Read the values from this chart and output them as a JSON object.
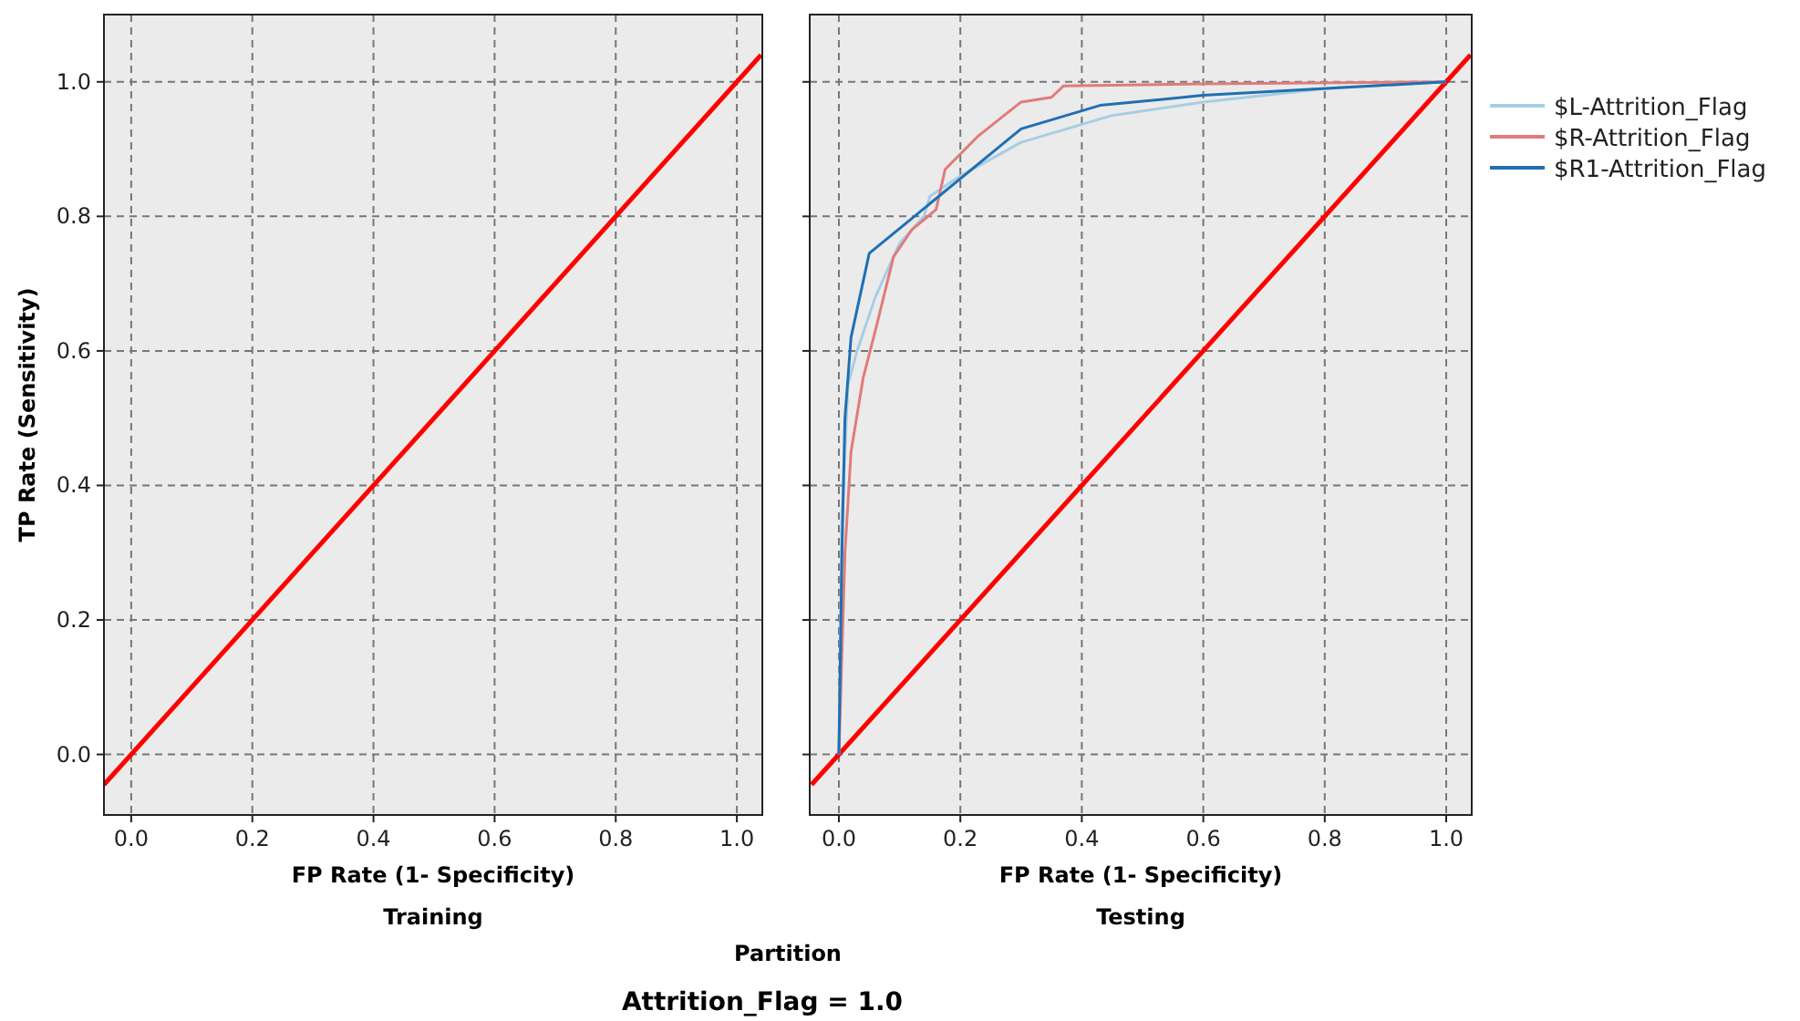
{
  "chart_data": [
    {
      "type": "line",
      "ylabel": "TP Rate (Sensitivity)",
      "xlabel": "FP Rate (1- Specificity)",
      "annotations": [
        "Training",
        "Partition",
        "Attrition_Flag = 1.0"
      ],
      "series": [
        {
          "color": "#ff0000",
          "x": [
            -0.045,
            1.04
          ],
          "values": [
            -0.045,
            1.04
          ]
        }
      ],
      "xlim": [
        -0.045,
        1.042
      ],
      "ylim": [
        -0.09,
        1.1
      ],
      "xticks": [
        {
          "value": 0,
          "label": "0.0"
        },
        {
          "value": 0.2,
          "label": "0.2"
        },
        {
          "value": 0.4,
          "label": "0.4"
        },
        {
          "value": 0.6,
          "label": "0.6"
        },
        {
          "value": 0.8,
          "label": "0.8"
        },
        {
          "value": 1,
          "label": "1.0"
        }
      ],
      "yticks": [
        {
          "value": 0,
          "label": "0.0"
        },
        {
          "value": 0.2,
          "label": "0.2"
        },
        {
          "value": 0.4,
          "label": "0.4"
        },
        {
          "value": 0.6,
          "label": "0.6"
        },
        {
          "value": 0.8,
          "label": "0.8"
        },
        {
          "value": 1,
          "label": "1.0"
        }
      ],
      "grid": true,
      "legend": false
    },
    {
      "type": "line",
      "xlabel": "FP Rate (1- Specificity)",
      "annotations": [
        "Testing"
      ],
      "tick_labels": "x",
      "series": [
        {
          "color": "#ff0000",
          "x": [
            -0.045,
            1.04
          ],
          "values": [
            -0.045,
            1.04
          ]
        },
        {
          "name": "$L-Attrition_Flag",
          "color": "#a6cee3",
          "x": [
            0,
            0.005,
            0.015,
            0.03,
            0.06,
            0.1,
            0.14,
            0.15,
            0.2,
            0.3,
            0.45,
            0.6,
            0.8,
            1
          ],
          "values": [
            0,
            0.35,
            0.55,
            0.6,
            0.68,
            0.76,
            0.8,
            0.83,
            0.86,
            0.91,
            0.95,
            0.97,
            0.99,
            1
          ]
        },
        {
          "name": "$R-Attrition_Flag",
          "color": "#e07b7b",
          "x": [
            0,
            0.01,
            0.02,
            0.04,
            0.06,
            0.09,
            0.12,
            0.16,
            0.175,
            0.23,
            0.3,
            0.35,
            0.37,
            0.6,
            1
          ],
          "values": [
            0,
            0.3,
            0.45,
            0.56,
            0.63,
            0.74,
            0.78,
            0.81,
            0.87,
            0.92,
            0.97,
            0.977,
            0.994,
            0.997,
            1
          ]
        },
        {
          "name": "$R1-Attrition_Flag",
          "color": "#1f6fb4",
          "x": [
            0,
            0.005,
            0.01,
            0.02,
            0.05,
            0.3,
            0.43,
            0.6,
            1
          ],
          "values": [
            0,
            0.3,
            0.5,
            0.62,
            0.745,
            0.93,
            0.965,
            0.98,
            1
          ]
        }
      ],
      "xlim": [
        -0.048,
        1.042
      ],
      "ylim": [
        -0.09,
        1.1
      ],
      "xticks": [
        {
          "value": 0,
          "label": "0.0"
        },
        {
          "value": 0.2,
          "label": "0.2"
        },
        {
          "value": 0.4,
          "label": "0.4"
        },
        {
          "value": 0.6,
          "label": "0.6"
        },
        {
          "value": 0.8,
          "label": "0.8"
        },
        {
          "value": 1,
          "label": "1.0"
        }
      ],
      "yticks": [
        {
          "value": 0,
          "label": null
        },
        {
          "value": 0.2,
          "label": null
        },
        {
          "value": 0.4,
          "label": null
        },
        {
          "value": 0.6,
          "label": null
        },
        {
          "value": 0.8,
          "label": null
        },
        {
          "value": 1,
          "label": null
        }
      ],
      "grid": true,
      "legend": "right"
    }
  ]
}
